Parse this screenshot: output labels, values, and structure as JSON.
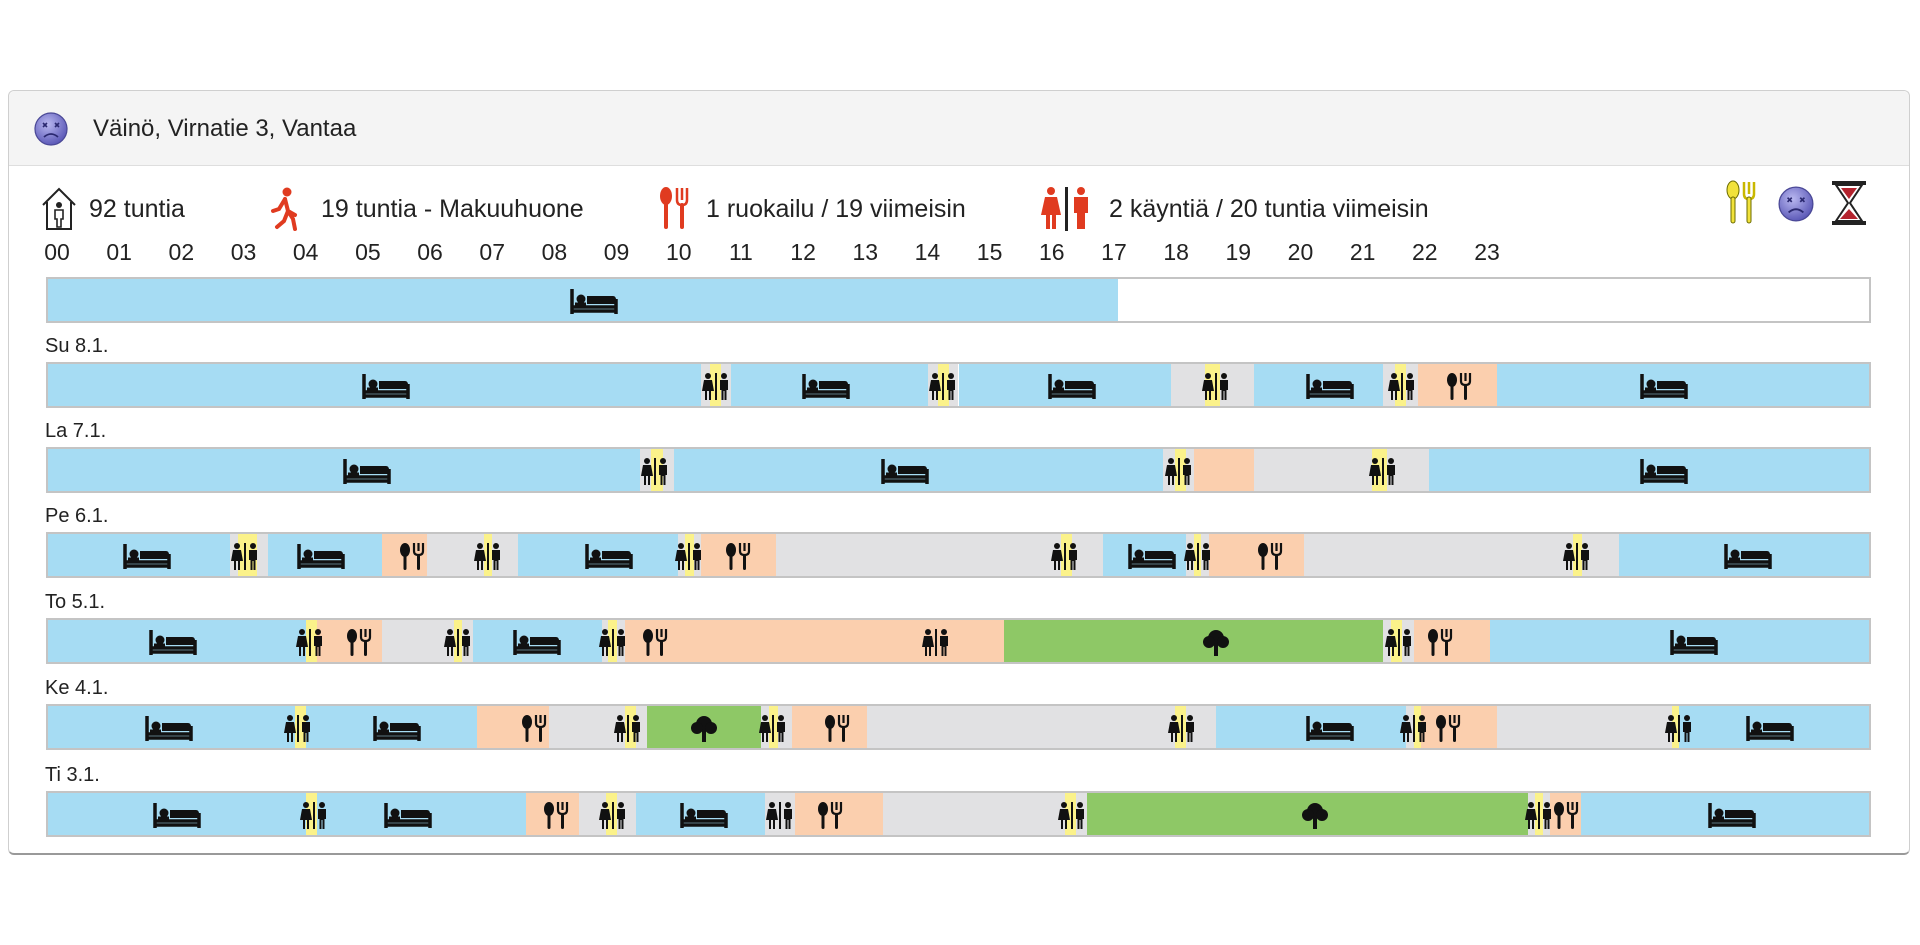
{
  "header": {
    "title": "Väinö, Virnatie 3, Vantaa",
    "avatar_icon": "sad-face-icon"
  },
  "stats": [
    {
      "icon": "home-person-icon",
      "text": "92 tuntia"
    },
    {
      "icon": "walking-person-icon",
      "text": "19 tuntia - Makuuhuone"
    },
    {
      "icon": "cutlery-icon",
      "text": "1 ruokailu / 19 viimeisin"
    },
    {
      "icon": "toilet-icon",
      "text": "2 käyntiä / 20 tuntia viimeisin"
    }
  ],
  "top_right_icons": [
    "meal-alert-icon",
    "sad-face-icon",
    "hourglass-icon"
  ],
  "colors": {
    "sleep": "#a6dcf3",
    "meal": "#fbcfae",
    "idle": "#e1e1e3",
    "outdoors": "#8ec866",
    "toilet": "#fbf28a"
  },
  "hours": [
    "00",
    "01",
    "02",
    "03",
    "04",
    "05",
    "06",
    "07",
    "08",
    "09",
    "10",
    "11",
    "12",
    "13",
    "14",
    "15",
    "16",
    "17",
    "18",
    "19",
    "20",
    "21",
    "22",
    "23"
  ],
  "days": [
    {
      "label": "",
      "segments": [
        {
          "t": "sleep",
          "s": 0,
          "e": 14.1
        }
      ],
      "icons": [
        {
          "i": "bed",
          "h": 7.2
        }
      ]
    },
    {
      "label": "Su 8.1.",
      "segments": [
        {
          "t": "sleep",
          "s": 0,
          "e": 8.6
        },
        {
          "t": "idle",
          "s": 8.6,
          "e": 9.0
        },
        {
          "t": "wc",
          "s": 8.73,
          "e": 8.87
        },
        {
          "t": "sleep",
          "s": 9.0,
          "e": 11.6
        },
        {
          "t": "idle",
          "s": 11.6,
          "e": 12.0
        },
        {
          "t": "wc",
          "s": 11.73,
          "e": 11.87
        },
        {
          "t": "sleep",
          "s": 12.0,
          "e": 14.8
        },
        {
          "t": "idle",
          "s": 14.8,
          "e": 15.9
        },
        {
          "t": "wc",
          "s": 15.25,
          "e": 15.45
        },
        {
          "t": "sleep",
          "s": 15.9,
          "e": 17.6
        },
        {
          "t": "idle",
          "s": 17.6,
          "e": 18.05
        },
        {
          "t": "wc",
          "s": 17.75,
          "e": 17.9
        },
        {
          "t": "meal",
          "s": 18.05,
          "e": 19.1
        },
        {
          "t": "sleep",
          "s": 19.1,
          "e": 24
        }
      ],
      "icons": [
        {
          "i": "bed",
          "h": 4.45
        },
        {
          "i": "wc",
          "h": 8.8
        },
        {
          "i": "bed",
          "h": 10.25
        },
        {
          "i": "wc",
          "h": 11.8
        },
        {
          "i": "bed",
          "h": 13.5
        },
        {
          "i": "wc",
          "h": 15.4
        },
        {
          "i": "bed",
          "h": 16.9
        },
        {
          "i": "wc",
          "h": 17.85
        },
        {
          "i": "meal",
          "h": 18.6
        },
        {
          "i": "bed",
          "h": 21.3
        }
      ]
    },
    {
      "label": "La 7.1.",
      "segments": [
        {
          "t": "sleep",
          "s": 0,
          "e": 7.8
        },
        {
          "t": "idle",
          "s": 7.8,
          "e": 8.25
        },
        {
          "t": "wc",
          "s": 7.95,
          "e": 8.1
        },
        {
          "t": "sleep",
          "s": 8.25,
          "e": 14.7
        },
        {
          "t": "idle",
          "s": 14.7,
          "e": 15.1
        },
        {
          "t": "wc",
          "s": 14.85,
          "e": 15.0
        },
        {
          "t": "meal",
          "s": 15.1,
          "e": 15.9
        },
        {
          "t": "idle",
          "s": 15.9,
          "e": 18.2
        },
        {
          "t": "wc",
          "s": 17.45,
          "e": 17.65
        },
        {
          "t": "sleep",
          "s": 18.2,
          "e": 24
        }
      ],
      "icons": [
        {
          "i": "bed",
          "h": 4.2
        },
        {
          "i": "wc",
          "h": 8.0
        },
        {
          "i": "bed",
          "h": 11.3
        },
        {
          "i": "wc",
          "h": 14.9
        },
        {
          "i": "wc",
          "h": 17.6
        },
        {
          "i": "bed",
          "h": 21.3
        }
      ]
    },
    {
      "label": "Pe 6.1.",
      "segments": [
        {
          "t": "sleep",
          "s": 0,
          "e": 2.4
        },
        {
          "t": "idle",
          "s": 2.4,
          "e": 2.9
        },
        {
          "t": "wc",
          "s": 2.5,
          "e": 2.75
        },
        {
          "t": "sleep",
          "s": 2.9,
          "e": 4.4
        },
        {
          "t": "meal",
          "s": 4.4,
          "e": 5.0
        },
        {
          "t": "idle",
          "s": 5.0,
          "e": 6.2
        },
        {
          "t": "wc",
          "s": 5.75,
          "e": 5.85
        },
        {
          "t": "sleep",
          "s": 6.2,
          "e": 8.3
        },
        {
          "t": "idle",
          "s": 8.3,
          "e": 8.6
        },
        {
          "t": "wc",
          "s": 8.4,
          "e": 8.52
        },
        {
          "t": "meal",
          "s": 8.6,
          "e": 9.6
        },
        {
          "t": "idle",
          "s": 9.6,
          "e": 13.9
        },
        {
          "t": "wc",
          "s": 13.35,
          "e": 13.5
        },
        {
          "t": "sleep",
          "s": 13.9,
          "e": 15.0
        },
        {
          "t": "idle",
          "s": 15.0,
          "e": 15.3
        },
        {
          "t": "wc",
          "s": 15.1,
          "e": 15.2
        },
        {
          "t": "meal",
          "s": 15.3,
          "e": 16.55
        },
        {
          "t": "idle",
          "s": 16.55,
          "e": 20.7
        },
        {
          "t": "wc",
          "s": 20.1,
          "e": 20.22
        },
        {
          "t": "sleep",
          "s": 20.7,
          "e": 24
        }
      ],
      "icons": [
        {
          "i": "bed",
          "h": 1.3
        },
        {
          "i": "wc",
          "h": 2.6
        },
        {
          "i": "bed",
          "h": 3.6
        },
        {
          "i": "meal",
          "h": 4.8
        },
        {
          "i": "wc",
          "h": 5.8
        },
        {
          "i": "bed",
          "h": 7.4
        },
        {
          "i": "wc",
          "h": 8.45
        },
        {
          "i": "meal",
          "h": 9.1
        },
        {
          "i": "wc",
          "h": 13.4
        },
        {
          "i": "bed",
          "h": 14.55
        },
        {
          "i": "wc",
          "h": 15.15
        },
        {
          "i": "meal",
          "h": 16.1
        },
        {
          "i": "wc",
          "h": 20.15
        },
        {
          "i": "bed",
          "h": 22.4
        }
      ]
    },
    {
      "label": "To 5.1.",
      "segments": [
        {
          "t": "sleep",
          "s": 0,
          "e": 3.5
        },
        {
          "t": "meal",
          "s": 3.5,
          "e": 4.4
        },
        {
          "t": "wc",
          "s": 3.4,
          "e": 3.55
        },
        {
          "t": "idle",
          "s": 4.4,
          "e": 5.6
        },
        {
          "t": "wc",
          "s": 5.35,
          "e": 5.45
        },
        {
          "t": "sleep",
          "s": 5.6,
          "e": 7.3
        },
        {
          "t": "idle",
          "s": 7.3,
          "e": 7.6
        },
        {
          "t": "wc",
          "s": 7.38,
          "e": 7.5
        },
        {
          "t": "meal",
          "s": 7.6,
          "e": 12.6
        },
        {
          "t": "idle",
          "s": 12.6,
          "e": 12.6
        },
        {
          "t": "out",
          "s": 12.6,
          "e": 17.6
        },
        {
          "t": "idle",
          "s": 17.6,
          "e": 18.0
        },
        {
          "t": "wc",
          "s": 17.7,
          "e": 17.85
        },
        {
          "t": "meal",
          "s": 18.0,
          "e": 19.0
        },
        {
          "t": "sleep",
          "s": 19.0,
          "e": 24
        }
      ],
      "icons": [
        {
          "i": "bed",
          "h": 1.65
        },
        {
          "i": "wc",
          "h": 3.45
        },
        {
          "i": "meal",
          "h": 4.1
        },
        {
          "i": "wc",
          "h": 5.4
        },
        {
          "i": "bed",
          "h": 6.45
        },
        {
          "i": "wc",
          "h": 7.45
        },
        {
          "i": "meal",
          "h": 8.0
        },
        {
          "i": "wc",
          "h": 11.7
        },
        {
          "i": "tree",
          "h": 15.4
        },
        {
          "i": "wc",
          "h": 17.8
        },
        {
          "i": "meal",
          "h": 18.35
        },
        {
          "i": "bed",
          "h": 21.7
        }
      ]
    },
    {
      "label": "Ke 4.1.",
      "segments": [
        {
          "t": "sleep",
          "s": 0,
          "e": 5.65
        },
        {
          "t": "wc",
          "s": 3.25,
          "e": 3.4
        },
        {
          "t": "meal",
          "s": 5.65,
          "e": 6.6
        },
        {
          "t": "idle",
          "s": 6.6,
          "e": 7.9
        },
        {
          "t": "wc",
          "s": 7.6,
          "e": 7.75
        },
        {
          "t": "out",
          "s": 7.9,
          "e": 9.4
        },
        {
          "t": "idle",
          "s": 9.4,
          "e": 9.8
        },
        {
          "t": "wc",
          "s": 9.5,
          "e": 9.62
        },
        {
          "t": "meal",
          "s": 9.8,
          "e": 10.8
        },
        {
          "t": "idle",
          "s": 10.8,
          "e": 15.4
        },
        {
          "t": "wc",
          "s": 14.85,
          "e": 15.0
        },
        {
          "t": "sleep",
          "s": 15.4,
          "e": 17.9
        },
        {
          "t": "idle",
          "s": 17.9,
          "e": 18.1
        },
        {
          "t": "wc",
          "s": 18.0,
          "e": 18.1
        },
        {
          "t": "meal",
          "s": 18.1,
          "e": 19.1
        },
        {
          "t": "idle",
          "s": 19.1,
          "e": 21.5
        },
        {
          "t": "wc",
          "s": 21.4,
          "e": 21.55
        },
        {
          "t": "sleep",
          "s": 21.5,
          "e": 24
        }
      ],
      "icons": [
        {
          "i": "bed",
          "h": 1.6
        },
        {
          "i": "wc",
          "h": 3.3
        },
        {
          "i": "bed",
          "h": 4.6
        },
        {
          "i": "meal",
          "h": 6.4
        },
        {
          "i": "wc",
          "h": 7.65
        },
        {
          "i": "tree",
          "h": 8.65
        },
        {
          "i": "wc",
          "h": 9.55
        },
        {
          "i": "meal",
          "h": 10.4
        },
        {
          "i": "wc",
          "h": 14.95
        },
        {
          "i": "bed",
          "h": 16.9
        },
        {
          "i": "wc",
          "h": 18.0
        },
        {
          "i": "meal",
          "h": 18.45
        },
        {
          "i": "wc",
          "h": 21.5
        },
        {
          "i": "bed",
          "h": 22.7
        }
      ]
    },
    {
      "label": "Ti 3.1.",
      "segments": [
        {
          "t": "sleep",
          "s": 0,
          "e": 6.3
        },
        {
          "t": "wc",
          "s": 3.4,
          "e": 3.55
        },
        {
          "t": "meal",
          "s": 6.3,
          "e": 7.0
        },
        {
          "t": "idle",
          "s": 7.0,
          "e": 7.75
        },
        {
          "t": "wc",
          "s": 7.35,
          "e": 7.5
        },
        {
          "t": "sleep",
          "s": 7.75,
          "e": 9.55
        },
        {
          "t": "wc",
          "s": 9.55,
          "e": 9.7
        },
        {
          "t": "idle",
          "s": 9.45,
          "e": 9.85
        },
        {
          "t": "meal",
          "s": 9.85,
          "e": 11.0
        },
        {
          "t": "idle",
          "s": 11.0,
          "e": 13.7
        },
        {
          "t": "wc",
          "s": 13.4,
          "e": 13.55
        },
        {
          "t": "out",
          "s": 13.7,
          "e": 19.5
        },
        {
          "t": "idle",
          "s": 19.5,
          "e": 19.8
        },
        {
          "t": "wc",
          "s": 19.6,
          "e": 19.7
        },
        {
          "t": "meal",
          "s": 19.8,
          "e": 20.2
        },
        {
          "t": "sleep",
          "s": 20.2,
          "e": 24
        }
      ],
      "icons": [
        {
          "i": "bed",
          "h": 1.7
        },
        {
          "i": "wc",
          "h": 3.5
        },
        {
          "i": "bed",
          "h": 4.75
        },
        {
          "i": "meal",
          "h": 6.7
        },
        {
          "i": "wc",
          "h": 7.45
        },
        {
          "i": "bed",
          "h": 8.65
        },
        {
          "i": "wc",
          "h": 9.65
        },
        {
          "i": "meal",
          "h": 10.3
        },
        {
          "i": "wc",
          "h": 13.5
        },
        {
          "i": "tree",
          "h": 16.7
        },
        {
          "i": "wc",
          "h": 19.65
        },
        {
          "i": "meal",
          "h": 20.0
        },
        {
          "i": "bed",
          "h": 22.2
        }
      ]
    }
  ]
}
